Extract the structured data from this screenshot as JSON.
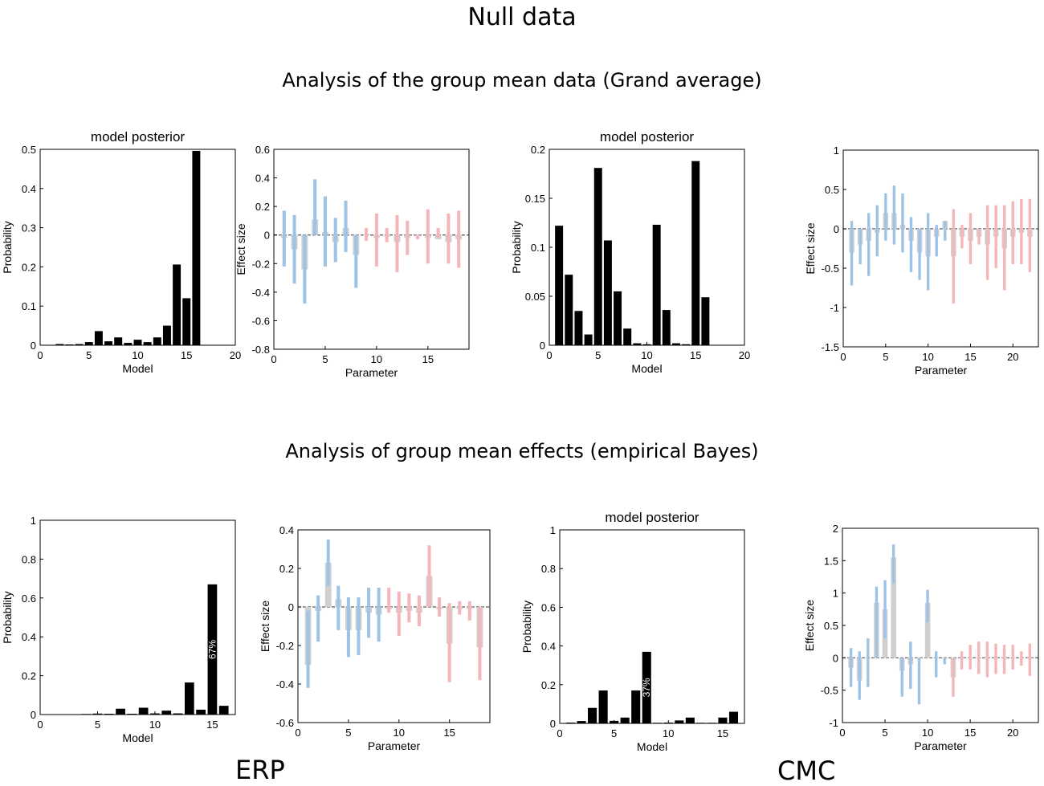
{
  "header": {
    "title": "Null data",
    "section1": "Analysis of the group mean data (Grand average)",
    "section2": "Analysis of group mean effects (empirical Bayes)"
  },
  "footer": {
    "left": "ERP",
    "right": "CMC"
  },
  "colors": {
    "bar": "#000000",
    "posterior": "#cfcfcf",
    "ci_blue": "#9dc3e6",
    "ci_red": "#f4b6b8",
    "axis": "#000000",
    "zero_line": "#555555"
  },
  "chart_data": [
    {
      "id": "erp-bma-grand",
      "type": "bar",
      "title": "model posterior",
      "xlabel": "Model",
      "ylabel": "Probability",
      "xlim": [
        0,
        20
      ],
      "ylim": [
        0,
        0.5
      ],
      "xticks": [
        0,
        5,
        10,
        15,
        20
      ],
      "yticks": [
        0,
        0.1,
        0.2,
        0.3,
        0.4,
        0.5
      ],
      "ytick_labels": [
        "0",
        "0.1",
        "0.2",
        "0.3",
        "0.4",
        "0.5"
      ],
      "x": [
        1,
        2,
        3,
        4,
        5,
        6,
        7,
        8,
        9,
        10,
        11,
        12,
        13,
        14,
        15,
        16
      ],
      "values": [
        0.001,
        0.003,
        0.002,
        0.003,
        0.008,
        0.036,
        0.01,
        0.02,
        0.006,
        0.014,
        0.008,
        0.02,
        0.05,
        0.206,
        0.12,
        0.496
      ]
    },
    {
      "id": "erp-params-grand",
      "type": "bar",
      "title": "",
      "xlabel": "Parameter",
      "ylabel": "Effect size",
      "xlim": [
        0,
        19
      ],
      "ylim": [
        -0.8,
        0.6
      ],
      "xticks": [
        0,
        5,
        10,
        15
      ],
      "yticks": [
        -0.8,
        -0.6,
        -0.4,
        -0.2,
        0,
        0.2,
        0.4,
        0.6
      ],
      "ytick_labels": [
        "-0.8",
        "-0.6",
        "-0.4",
        "-0.2",
        "0",
        "0.2",
        "0.4",
        "0.6"
      ],
      "x": [
        1,
        2,
        3,
        4,
        5,
        6,
        7,
        8,
        9,
        10,
        11,
        12,
        13,
        14,
        15,
        16,
        17,
        18
      ],
      "values": [
        -0.02,
        -0.1,
        -0.24,
        0.11,
        0.02,
        -0.05,
        0.05,
        -0.14,
        0.0,
        -0.02,
        -0.01,
        -0.05,
        -0.02,
        -0.01,
        -0.02,
        -0.03,
        -0.05,
        -0.03
      ],
      "ci_upper": [
        0.17,
        0.14,
        0.0,
        0.39,
        0.27,
        0.12,
        0.24,
        0.0,
        0.05,
        0.15,
        0.05,
        0.14,
        0.1,
        0.0,
        0.18,
        0.05,
        0.15,
        0.17
      ],
      "ci_lower": [
        -0.22,
        -0.34,
        -0.48,
        0.0,
        -0.22,
        -0.19,
        -0.12,
        -0.37,
        -0.04,
        -0.22,
        -0.05,
        -0.26,
        -0.14,
        -0.03,
        -0.2,
        -0.02,
        -0.2,
        -0.23
      ],
      "ci_colors": [
        "blue",
        "blue",
        "blue",
        "blue",
        "blue",
        "blue",
        "blue",
        "blue",
        "red",
        "red",
        "red",
        "red",
        "red",
        "red",
        "red",
        "red",
        "red",
        "red"
      ]
    },
    {
      "id": "cmc-bma-grand",
      "type": "bar",
      "title": "model posterior",
      "xlabel": "Model",
      "ylabel": "Probability",
      "xlim": [
        0,
        20
      ],
      "ylim": [
        0,
        0.2
      ],
      "xticks": [
        0,
        5,
        10,
        15,
        20
      ],
      "yticks": [
        0,
        0.05,
        0.1,
        0.15,
        0.2
      ],
      "ytick_labels": [
        "0",
        "0.05",
        "0.1",
        "0.15",
        "0.2"
      ],
      "x": [
        1,
        2,
        3,
        4,
        5,
        6,
        7,
        8,
        9,
        10,
        11,
        12,
        13,
        14,
        15,
        16
      ],
      "values": [
        0.122,
        0.072,
        0.035,
        0.011,
        0.181,
        0.107,
        0.055,
        0.017,
        0.002,
        0.001,
        0.123,
        0.036,
        0.002,
        0.001,
        0.188,
        0.049
      ]
    },
    {
      "id": "cmc-params-grand",
      "type": "bar",
      "title": "",
      "xlabel": "Parameter",
      "ylabel": "Effect size",
      "xlim": [
        0,
        23
      ],
      "ylim": [
        -1.5,
        1
      ],
      "xticks": [
        0,
        5,
        10,
        15,
        20
      ],
      "yticks": [
        -1.5,
        -1,
        -0.5,
        0,
        0.5,
        1
      ],
      "ytick_labels": [
        "-1.5",
        "-1",
        "-0.5",
        "0",
        "0.5",
        "1"
      ],
      "x": [
        1,
        2,
        3,
        4,
        5,
        6,
        7,
        8,
        9,
        10,
        11,
        12,
        13,
        14,
        15,
        16,
        17,
        18,
        19,
        20,
        21,
        22
      ],
      "values": [
        -0.3,
        -0.2,
        -0.15,
        -0.05,
        0.2,
        0.2,
        0.05,
        -0.15,
        -0.3,
        -0.35,
        -0.1,
        0.1,
        -0.35,
        -0.1,
        -0.15,
        -0.1,
        -0.2,
        -0.1,
        -0.25,
        -0.1,
        -0.05,
        -0.1
      ],
      "ci_upper": [
        0.1,
        0.0,
        0.2,
        0.3,
        0.45,
        0.55,
        0.45,
        0.15,
        0.0,
        0.2,
        0.05,
        0.1,
        0.25,
        0.05,
        0.2,
        0.0,
        0.3,
        0.3,
        0.3,
        0.35,
        0.38,
        0.38
      ],
      "ci_lower": [
        -0.72,
        -0.45,
        -0.6,
        -0.35,
        -0.15,
        -0.2,
        -0.3,
        -0.55,
        -0.65,
        -0.78,
        -0.35,
        -0.15,
        -0.95,
        -0.25,
        -0.45,
        -0.2,
        -0.65,
        -0.5,
        -0.78,
        -0.45,
        -0.45,
        -0.55
      ],
      "ci_colors": [
        "blue",
        "blue",
        "blue",
        "blue",
        "blue",
        "blue",
        "blue",
        "blue",
        "blue",
        "blue",
        "blue",
        "blue",
        "red",
        "red",
        "red",
        "red",
        "red",
        "red",
        "red",
        "red",
        "red",
        "red"
      ]
    },
    {
      "id": "erp-bma-peb",
      "type": "bar",
      "title": "",
      "xlabel": "Model",
      "ylabel": "Probability",
      "xlim": [
        0,
        17
      ],
      "ylim": [
        0,
        1
      ],
      "xticks": [
        0,
        5,
        10,
        15
      ],
      "yticks": [
        0,
        0.2,
        0.4,
        0.6,
        0.8,
        1
      ],
      "ytick_labels": [
        "0",
        "0.2",
        "0.4",
        "0.6",
        "0.8",
        "1"
      ],
      "x": [
        1,
        2,
        3,
        4,
        5,
        6,
        7,
        8,
        9,
        10,
        11,
        12,
        13,
        14,
        15,
        16
      ],
      "values": [
        0.002,
        0.002,
        0.002,
        0.003,
        0.005,
        0.004,
        0.03,
        0.004,
        0.035,
        0.006,
        0.02,
        0.006,
        0.165,
        0.025,
        0.67,
        0.045
      ],
      "annotation": {
        "label": "67%",
        "at_x": 15
      }
    },
    {
      "id": "erp-params-peb",
      "type": "bar",
      "title": "",
      "xlabel": "Parameter",
      "ylabel": "Effect size",
      "xlim": [
        0,
        19
      ],
      "ylim": [
        -0.6,
        0.4
      ],
      "xticks": [
        0,
        5,
        10,
        15
      ],
      "yticks": [
        -0.6,
        -0.4,
        -0.2,
        0,
        0.2,
        0.4
      ],
      "ytick_labels": [
        "-0.6",
        "-0.4",
        "-0.2",
        "0",
        "0.2",
        "0.4"
      ],
      "x": [
        1,
        2,
        3,
        4,
        5,
        6,
        7,
        8,
        9,
        10,
        11,
        12,
        13,
        14,
        15,
        16,
        17,
        18
      ],
      "values": [
        -0.3,
        -0.02,
        0.23,
        0.04,
        -0.12,
        -0.12,
        -0.03,
        -0.04,
        -0.01,
        -0.03,
        -0.02,
        -0.03,
        0.16,
        -0.01,
        -0.19,
        -0.01,
        -0.01,
        -0.21
      ],
      "ci_upper": [
        -0.02,
        0.06,
        0.35,
        0.11,
        0.05,
        0.05,
        0.1,
        0.1,
        0.1,
        0.08,
        0.07,
        0.06,
        0.32,
        0.05,
        0.02,
        0.03,
        0.03,
        0.0
      ],
      "ci_lower": [
        -0.42,
        -0.18,
        0.11,
        -0.12,
        -0.26,
        -0.25,
        -0.16,
        -0.18,
        -0.03,
        -0.15,
        -0.08,
        -0.1,
        0.0,
        -0.05,
        -0.39,
        -0.04,
        -0.07,
        -0.38
      ],
      "ci_colors": [
        "blue",
        "blue",
        "blue",
        "blue",
        "blue",
        "blue",
        "blue",
        "blue",
        "red",
        "red",
        "red",
        "red",
        "red",
        "red",
        "red",
        "red",
        "red",
        "red"
      ]
    },
    {
      "id": "cmc-bma-peb",
      "type": "bar",
      "title": "model posterior",
      "xlabel": "Model",
      "ylabel": "Probability",
      "xlim": [
        0,
        17
      ],
      "ylim": [
        0,
        1
      ],
      "xticks": [
        0,
        5,
        10,
        15
      ],
      "yticks": [
        0,
        0.2,
        0.4,
        0.6,
        0.8,
        1
      ],
      "ytick_labels": [
        "0",
        "0.2",
        "0.4",
        "0.6",
        "0.8",
        "1"
      ],
      "x": [
        1,
        2,
        3,
        4,
        5,
        6,
        7,
        8,
        9,
        10,
        11,
        12,
        13,
        14,
        15,
        16
      ],
      "values": [
        0.004,
        0.012,
        0.08,
        0.17,
        0.013,
        0.03,
        0.17,
        0.37,
        0.003,
        0.004,
        0.015,
        0.03,
        0.003,
        0.003,
        0.03,
        0.06
      ],
      "annotation": {
        "label": "37%",
        "at_x": 8
      }
    },
    {
      "id": "cmc-params-peb",
      "type": "bar",
      "title": "",
      "xlabel": "Parameter",
      "ylabel": "Effect size",
      "xlim": [
        0,
        23
      ],
      "ylim": [
        -1,
        2
      ],
      "xticks": [
        0,
        5,
        10,
        15,
        20
      ],
      "yticks": [
        -1,
        -0.5,
        0,
        0.5,
        1,
        1.5,
        2
      ],
      "ytick_labels": [
        "-1",
        "-0.5",
        "0",
        "0.5",
        "1",
        "1.5",
        "2"
      ],
      "x": [
        1,
        2,
        3,
        4,
        5,
        6,
        7,
        8,
        9,
        10,
        11,
        12,
        13,
        14,
        15,
        16,
        17,
        18,
        19,
        20,
        21,
        22
      ],
      "values": [
        -0.15,
        -0.35,
        0.0,
        0.85,
        0.75,
        1.55,
        -0.2,
        -0.1,
        0.0,
        0.85,
        0.0,
        0.0,
        -0.3,
        0.0,
        0.0,
        0.0,
        0.0,
        0.0,
        0.0,
        0.0,
        0.0,
        0.0
      ],
      "ci_upper": [
        0.15,
        0.1,
        0.3,
        1.1,
        1.2,
        1.75,
        0.0,
        0.25,
        0.0,
        1.05,
        0.1,
        0.0,
        0.0,
        0.1,
        0.2,
        0.25,
        0.25,
        0.22,
        0.2,
        0.2,
        0.1,
        0.22
      ],
      "ci_lower": [
        -0.45,
        -0.65,
        -0.45,
        0.0,
        0.3,
        1.15,
        -0.6,
        -0.48,
        -0.72,
        0.55,
        -0.3,
        -0.1,
        -0.6,
        -0.18,
        -0.18,
        -0.25,
        -0.3,
        -0.25,
        -0.25,
        -0.18,
        -0.12,
        -0.28
      ],
      "ci_colors": [
        "blue",
        "blue",
        "blue",
        "blue",
        "blue",
        "blue",
        "blue",
        "blue",
        "blue",
        "blue",
        "blue",
        "blue",
        "red",
        "red",
        "red",
        "red",
        "red",
        "red",
        "red",
        "red",
        "red",
        "red"
      ]
    }
  ]
}
